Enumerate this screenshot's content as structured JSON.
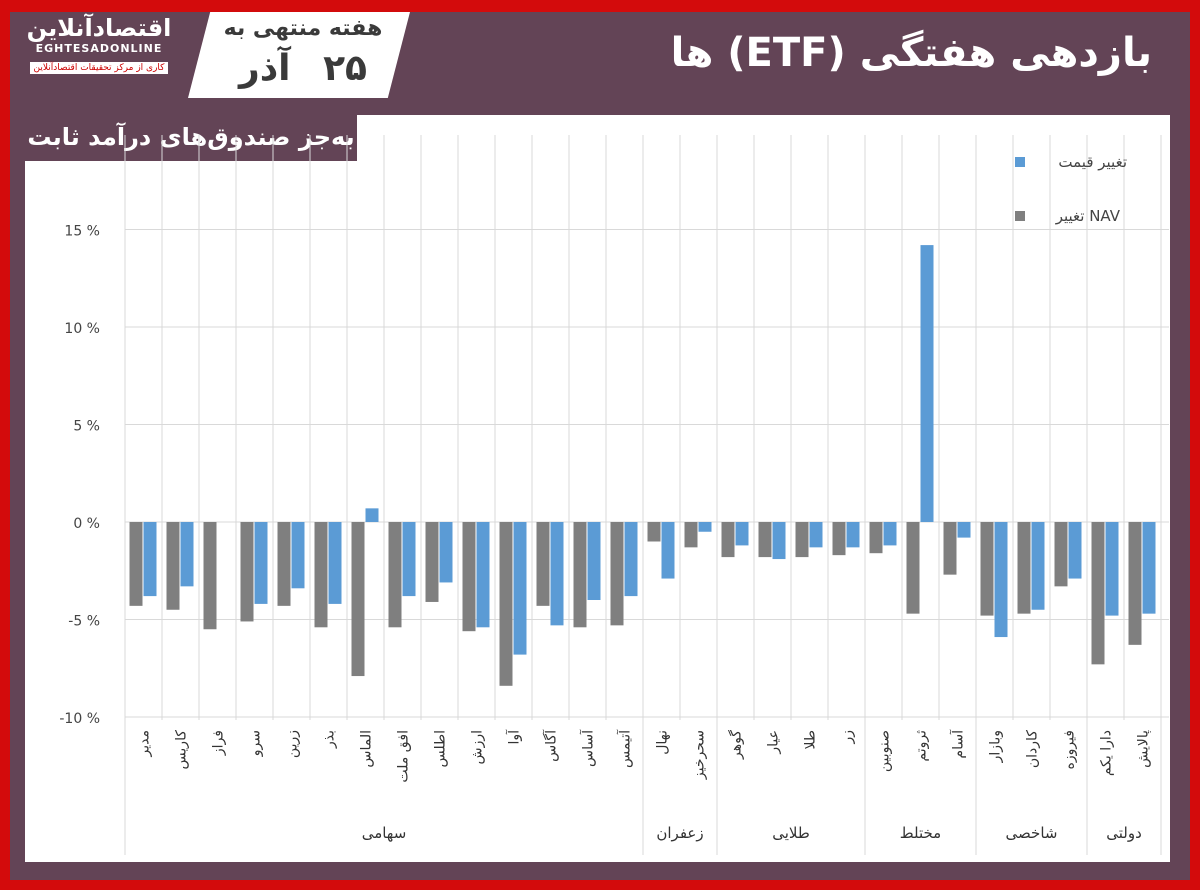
{
  "header": {
    "logo_text": "اقتصادآنلاین",
    "logo_en": "EGHTESADONLINE",
    "logo_tagline": "کاری از مرکز تحقیقات اقتصادآنلاین",
    "week_label": "هفته منتهی به",
    "date": "۲۵ آذر",
    "title": "بازدهی هفتگی (ETF) ها",
    "subtitle": "به‌جز صندوق‌های درآمد ثابت"
  },
  "colors": {
    "price": "#5b9bd5",
    "nav": "#7f7f7f",
    "frame": "#d30b0c",
    "panel": "#634456"
  },
  "chart_data": {
    "type": "bar",
    "title": "بازدهی هفتگی (ETF) ها",
    "ylim": [
      -10,
      15
    ],
    "yticks": [
      15,
      10,
      5,
      0,
      -5,
      -10
    ],
    "ytick_labels": [
      "15 %",
      "10 %",
      "5 %",
      "0 %",
      "-5 %",
      "-10 %"
    ],
    "grid": true,
    "legend_position": "top-right",
    "categories": [
      "مدیر",
      "کاریس",
      "فراز",
      "سرو",
      "زرین",
      "بذر",
      "الماس",
      "افق ملت",
      "اطلس",
      "ارزش",
      "آوا",
      "آگاس",
      "آساس",
      "آتیمس",
      "نهال",
      "سحرخیز",
      "گوهر",
      "عیار",
      "طلا",
      "زر",
      "صنوبین",
      "ثروتم",
      "آسام",
      "وبازار",
      "کاردان",
      "فیروزه",
      "دارا یکم",
      "پالایش"
    ],
    "groups": [
      {
        "name": "سهامی",
        "count": 14
      },
      {
        "name": "زعفران",
        "count": 2
      },
      {
        "name": "طلایی",
        "count": 4
      },
      {
        "name": "مختلط",
        "count": 3
      },
      {
        "name": "شاخصی",
        "count": 3
      },
      {
        "name": "دولتی",
        "count": 2
      }
    ],
    "series": [
      {
        "name": "تغییر NAV",
        "color": "#7f7f7f",
        "values": [
          -4.3,
          -4.5,
          -5.5,
          -5.1,
          -4.3,
          -5.4,
          -7.9,
          -5.4,
          -4.1,
          -5.6,
          -8.4,
          -4.3,
          -5.4,
          -5.3,
          -1.0,
          -1.3,
          -1.8,
          -1.8,
          -1.8,
          -1.7,
          -1.6,
          -4.7,
          -2.7,
          -4.8,
          -4.7,
          -3.3,
          -7.3,
          -6.3
        ]
      },
      {
        "name": "تغییر قیمت",
        "color": "#5b9bd5",
        "values": [
          -3.8,
          -3.3,
          0,
          -4.2,
          -3.4,
          -4.2,
          0.7,
          -3.8,
          -3.1,
          -5.4,
          -6.8,
          -5.3,
          -4.0,
          -3.8,
          -2.9,
          -0.5,
          -1.2,
          -1.9,
          -1.3,
          -1.3,
          -1.2,
          14.2,
          -0.8,
          -5.9,
          -4.5,
          -2.9,
          -4.8,
          -4.7
        ]
      }
    ]
  }
}
